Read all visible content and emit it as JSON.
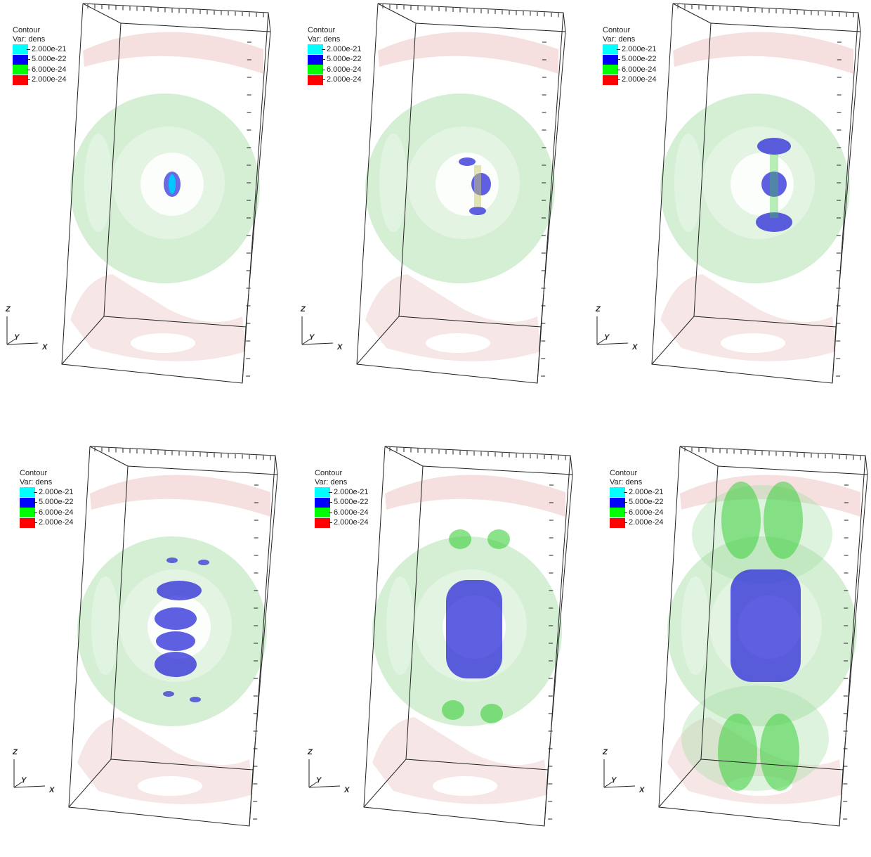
{
  "legend": {
    "title": "Contour",
    "var_label": "Var: dens",
    "levels": [
      {
        "value": "2.000e-21",
        "color": "#00ffff"
      },
      {
        "value": "5.000e-22",
        "color": "#0000ff"
      },
      {
        "value": "6.000e-24",
        "color": "#00ff00"
      },
      {
        "value": "2.000e-24",
        "color": "#ff0000"
      }
    ]
  },
  "axes": {
    "z": "Z",
    "y": "Y",
    "x": "X"
  },
  "colors": {
    "shell_green": "#9fdc9f",
    "ring_pink": "#e9b8b8",
    "jet_blue": "#2a2ad8",
    "knot_green": "#3ccf3c"
  },
  "panels": [
    {
      "id": "p1",
      "stage": 1
    },
    {
      "id": "p2",
      "stage": 2
    },
    {
      "id": "p3",
      "stage": 3
    },
    {
      "id": "p4",
      "stage": 4
    },
    {
      "id": "p5",
      "stage": 5
    },
    {
      "id": "p6",
      "stage": 6
    }
  ]
}
